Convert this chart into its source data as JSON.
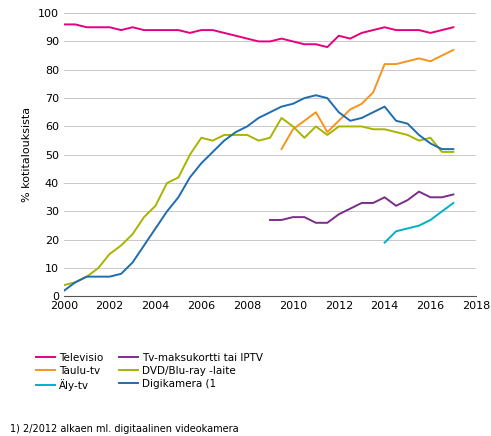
{
  "title": "",
  "ylabel": "% kotitalouksista",
  "footnote": "1) 2/2012 alkaen ml. digitaalinen videokamera",
  "ylim": [
    0,
    100
  ],
  "xlim": [
    2000,
    2018
  ],
  "xticks": [
    2000,
    2002,
    2004,
    2006,
    2008,
    2010,
    2012,
    2014,
    2016,
    2018
  ],
  "yticks": [
    0,
    10,
    20,
    30,
    40,
    50,
    60,
    70,
    80,
    90,
    100
  ],
  "series": {
    "Televisio": {
      "color": "#e6007e",
      "x": [
        2000.0,
        2000.5,
        2001.0,
        2001.5,
        2002.0,
        2002.5,
        2003.0,
        2003.5,
        2004.0,
        2004.5,
        2005.0,
        2005.5,
        2006.0,
        2006.5,
        2007.0,
        2007.5,
        2008.0,
        2008.5,
        2009.0,
        2009.5,
        2010.0,
        2010.5,
        2011.0,
        2011.5,
        2012.0,
        2012.5,
        2013.0,
        2013.5,
        2014.0,
        2014.5,
        2015.0,
        2015.5,
        2016.0,
        2016.5,
        2017.0
      ],
      "y": [
        96,
        96,
        95,
        95,
        95,
        94,
        95,
        94,
        94,
        94,
        94,
        93,
        94,
        94,
        93,
        92,
        91,
        90,
        90,
        91,
        90,
        89,
        89,
        88,
        92,
        91,
        93,
        94,
        95,
        94,
        94,
        94,
        93,
        94,
        95
      ]
    },
    "Taulu-tv": {
      "color": "#f7941d",
      "x": [
        2009.5,
        2010.0,
        2010.5,
        2011.0,
        2011.5,
        2012.0,
        2012.5,
        2013.0,
        2013.5,
        2014.0,
        2014.5,
        2015.0,
        2015.5,
        2016.0,
        2016.5,
        2017.0
      ],
      "y": [
        52,
        59,
        62,
        65,
        58,
        62,
        66,
        68,
        72,
        82,
        82,
        83,
        84,
        83,
        85,
        87
      ]
    },
    "Äly-tv": {
      "color": "#00b0c8",
      "x": [
        2014.0,
        2014.5,
        2015.0,
        2015.5,
        2016.0,
        2016.5,
        2017.0
      ],
      "y": [
        19,
        23,
        24,
        25,
        27,
        30,
        33
      ]
    },
    "Tv-maksukortti tai IPTV": {
      "color": "#7b2d8b",
      "x": [
        2009.0,
        2009.5,
        2010.0,
        2010.5,
        2011.0,
        2011.5,
        2012.0,
        2012.5,
        2013.0,
        2013.5,
        2014.0,
        2014.5,
        2015.0,
        2015.5,
        2016.0,
        2016.5,
        2017.0
      ],
      "y": [
        27,
        27,
        28,
        28,
        26,
        26,
        29,
        31,
        33,
        33,
        35,
        32,
        34,
        37,
        35,
        35,
        36
      ]
    },
    "DVD/Blu-ray -laite": {
      "color": "#a8b400",
      "x": [
        2000.0,
        2000.5,
        2001.0,
        2001.5,
        2002.0,
        2002.5,
        2003.0,
        2003.5,
        2004.0,
        2004.5,
        2005.0,
        2005.5,
        2006.0,
        2006.5,
        2007.0,
        2007.5,
        2008.0,
        2008.5,
        2009.0,
        2009.5,
        2010.0,
        2010.5,
        2011.0,
        2011.5,
        2012.0,
        2012.5,
        2013.0,
        2013.5,
        2014.0,
        2014.5,
        2015.0,
        2015.5,
        2016.0,
        2016.5,
        2017.0
      ],
      "y": [
        4,
        5,
        7,
        10,
        15,
        18,
        22,
        28,
        32,
        40,
        42,
        50,
        56,
        55,
        57,
        57,
        57,
        55,
        56,
        63,
        60,
        56,
        60,
        57,
        60,
        60,
        60,
        59,
        59,
        58,
        57,
        55,
        56,
        51,
        51
      ]
    },
    "Digikamera (1": {
      "color": "#1f6cb0",
      "x": [
        2000.0,
        2000.5,
        2001.0,
        2001.5,
        2002.0,
        2002.5,
        2003.0,
        2003.5,
        2004.0,
        2004.5,
        2005.0,
        2005.5,
        2006.0,
        2006.5,
        2007.0,
        2007.5,
        2008.0,
        2008.5,
        2009.0,
        2009.5,
        2010.0,
        2010.5,
        2011.0,
        2011.5,
        2012.0,
        2012.5,
        2013.0,
        2013.5,
        2014.0,
        2014.5,
        2015.0,
        2015.5,
        2016.0,
        2016.5,
        2017.0
      ],
      "y": [
        2,
        5,
        7,
        7,
        7,
        8,
        12,
        18,
        24,
        30,
        35,
        42,
        47,
        51,
        55,
        58,
        60,
        63,
        65,
        67,
        68,
        70,
        71,
        70,
        65,
        62,
        63,
        65,
        67,
        62,
        61,
        57,
        54,
        52,
        52
      ]
    }
  },
  "legend_order": [
    "Televisio",
    "Taulu-tv",
    "Äly-tv",
    "Tv-maksukortti tai IPTV",
    "DVD/Blu-ray -laite",
    "Digikamera (1"
  ],
  "background_color": "#ffffff",
  "grid_color": "#c8c8c8",
  "linewidth": 1.4
}
